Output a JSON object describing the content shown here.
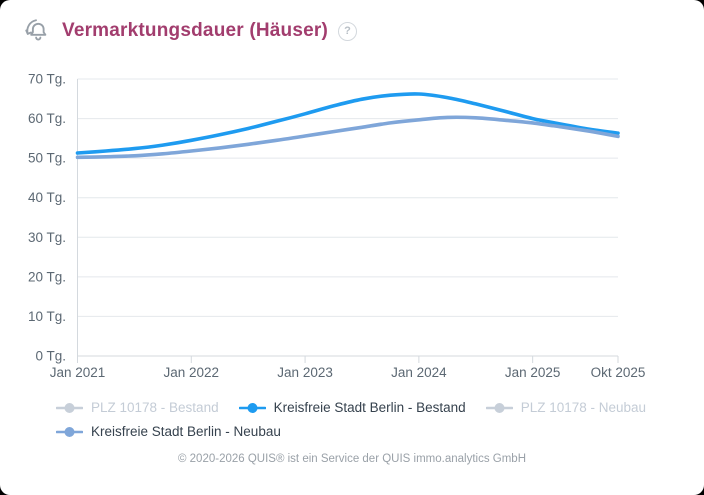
{
  "header": {
    "title": "Vermarktungsdauer (Häuser)",
    "title_color": "#a23d6e",
    "bell_icon_color": "#98a0a8",
    "help_label": "?"
  },
  "footer": {
    "copyright": "© 2020-2026 QUIS® ist ein Service der QUIS immo.analytics GmbH"
  },
  "colors": {
    "grid": "#e4e8ec",
    "axis": "#d4d9de",
    "tick_text": "#5c6873",
    "legend_active_text": "#36424e",
    "legend_inactive_text": "#c4ccd6"
  },
  "chart_data": {
    "type": "line",
    "title": "Vermarktungsdauer (Häuser)",
    "ylabel": "",
    "xlabel": "",
    "y_suffix": " Tg.",
    "ylim": [
      0,
      70
    ],
    "ytick_step": 10,
    "grid": true,
    "legend_position": "bottom",
    "x_unit": "years_from_jan_2021",
    "xticks": [
      {
        "t": 0,
        "label": "Jan 2021"
      },
      {
        "t": 1,
        "label": "Jan 2022"
      },
      {
        "t": 2,
        "label": "Jan 2023"
      },
      {
        "t": 3,
        "label": "Jan 2024"
      },
      {
        "t": 4,
        "label": "Jan 2025"
      },
      {
        "t": 4.75,
        "label": "Okt 2025"
      }
    ],
    "series": [
      {
        "name": "PLZ 10178 - Bestand",
        "color": "#c7cfd9",
        "active": false,
        "points": []
      },
      {
        "name": "Kreisfreie Stadt Berlin - Bestand",
        "color": "#1e9bf0",
        "active": true,
        "points": [
          [
            0,
            51.3
          ],
          [
            0.25,
            51.8
          ],
          [
            0.5,
            52.4
          ],
          [
            0.75,
            53.3
          ],
          [
            1.0,
            54.5
          ],
          [
            1.25,
            55.9
          ],
          [
            1.5,
            57.5
          ],
          [
            1.75,
            59.3
          ],
          [
            2.0,
            61.2
          ],
          [
            2.25,
            63.2
          ],
          [
            2.5,
            64.9
          ],
          [
            2.75,
            65.9
          ],
          [
            3.0,
            66.2
          ],
          [
            3.25,
            65.3
          ],
          [
            3.5,
            63.7
          ],
          [
            3.75,
            61.9
          ],
          [
            4.0,
            60.0
          ],
          [
            4.25,
            58.6
          ],
          [
            4.5,
            57.3
          ],
          [
            4.75,
            56.3
          ]
        ]
      },
      {
        "name": "PLZ 10178 - Neubau",
        "color": "#c7cfd9",
        "active": false,
        "points": []
      },
      {
        "name": "Kreisfreie Stadt Berlin - Neubau",
        "color": "#7fa6d9",
        "active": true,
        "points": [
          [
            0,
            50.2
          ],
          [
            0.25,
            50.35
          ],
          [
            0.5,
            50.6
          ],
          [
            0.75,
            51.1
          ],
          [
            1.0,
            51.8
          ],
          [
            1.25,
            52.6
          ],
          [
            1.5,
            53.5
          ],
          [
            1.75,
            54.5
          ],
          [
            2.0,
            55.6
          ],
          [
            2.25,
            56.7
          ],
          [
            2.5,
            57.8
          ],
          [
            2.75,
            58.9
          ],
          [
            3.0,
            59.7
          ],
          [
            3.25,
            60.3
          ],
          [
            3.5,
            60.2
          ],
          [
            3.75,
            59.6
          ],
          [
            4.0,
            58.9
          ],
          [
            4.25,
            57.9
          ],
          [
            4.5,
            56.8
          ],
          [
            4.75,
            55.5
          ]
        ]
      }
    ]
  }
}
